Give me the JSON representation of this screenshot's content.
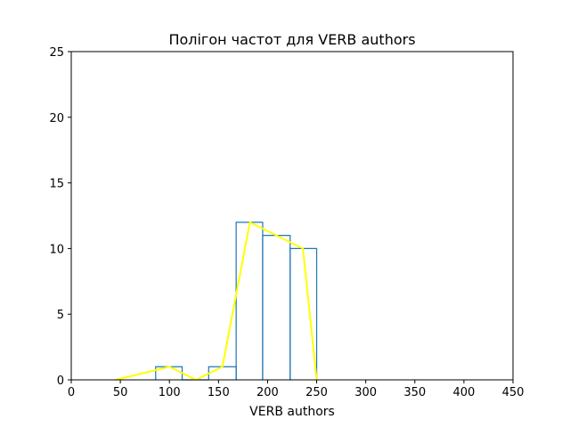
{
  "chart_data": {
    "type": "line",
    "title": "Полігон частот для VERB authors",
    "xlabel": "VERB authors",
    "ylabel": "",
    "xlim": [
      0,
      450
    ],
    "ylim": [
      0,
      25
    ],
    "xticks": [
      0,
      50,
      100,
      150,
      200,
      250,
      300,
      350,
      400,
      450
    ],
    "yticks": [
      0,
      5,
      10,
      15,
      20,
      25
    ],
    "grid": false,
    "series": [
      {
        "kind": "step-histogram",
        "color": "#1f77b4",
        "bins": [
          {
            "from": 86,
            "to": 113,
            "count": 1
          },
          {
            "from": 113,
            "to": 140,
            "count": 0
          },
          {
            "from": 140,
            "to": 168,
            "count": 1
          },
          {
            "from": 168,
            "to": 195,
            "count": 12
          },
          {
            "from": 195,
            "to": 223,
            "count": 11
          },
          {
            "from": 223,
            "to": 250,
            "count": 10
          }
        ]
      },
      {
        "kind": "frequency-polygon",
        "color": "#ffff00",
        "x": [
          45,
          100,
          127,
          154,
          182,
          209,
          236,
          250
        ],
        "y": [
          0,
          1,
          0,
          1,
          12,
          11,
          10,
          0
        ]
      }
    ]
  }
}
